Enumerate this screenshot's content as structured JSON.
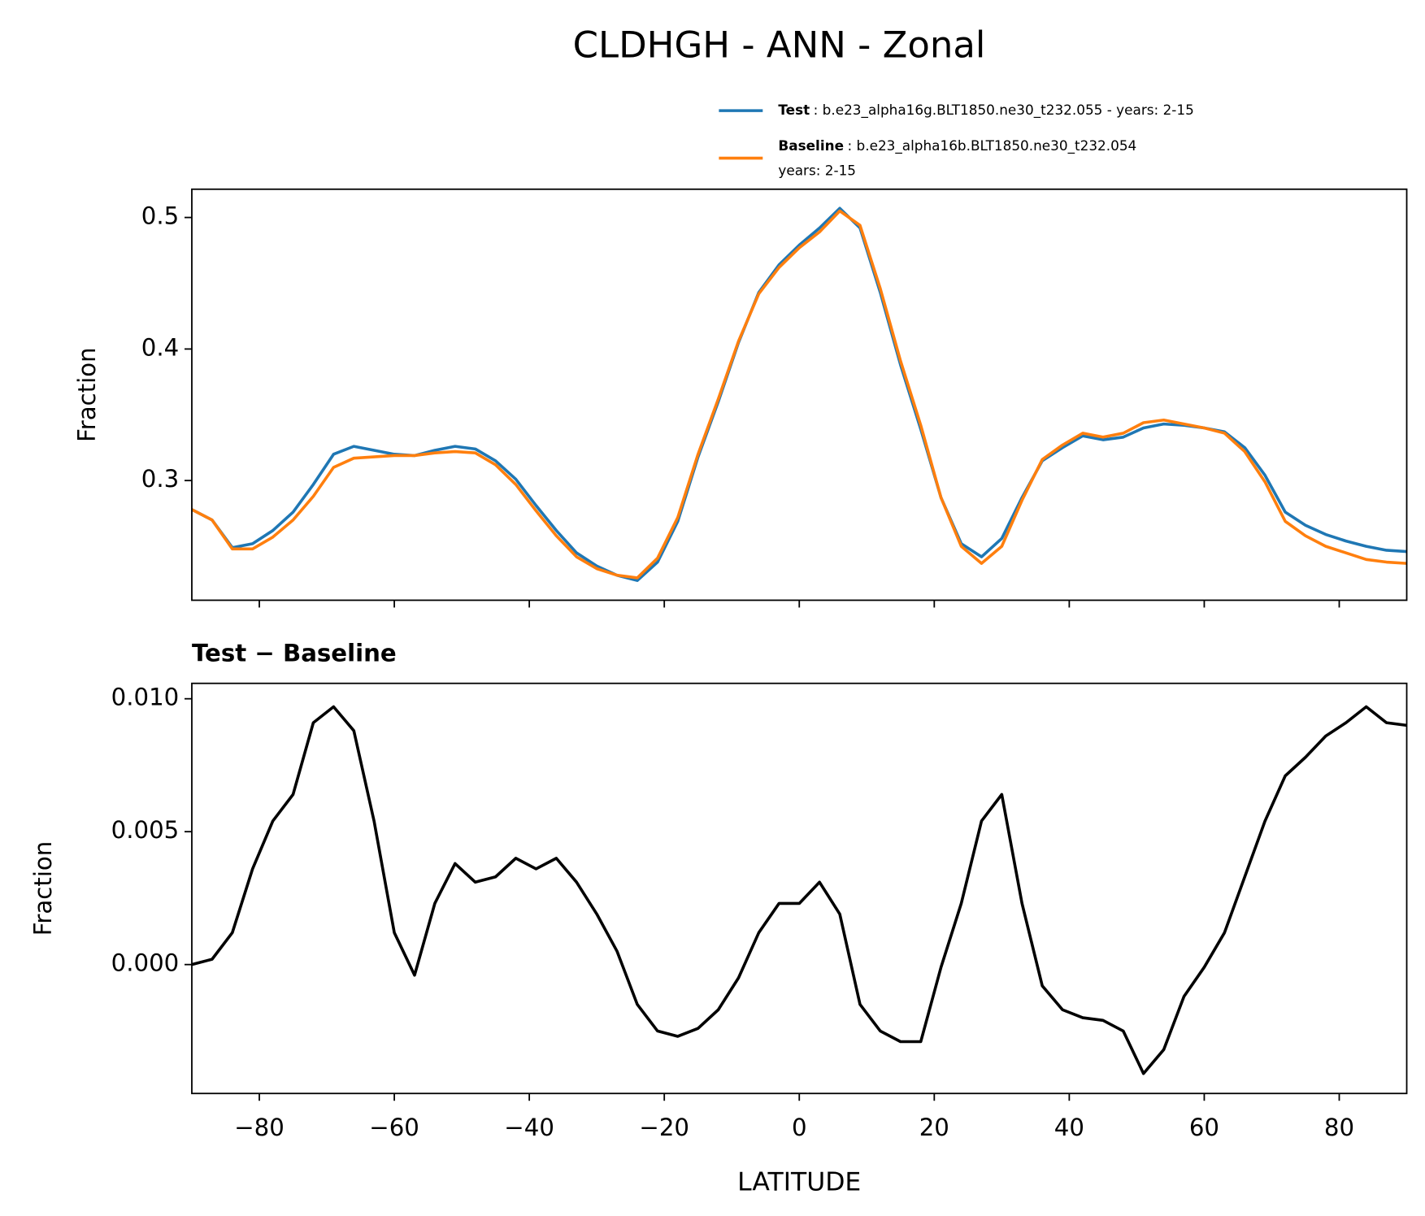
{
  "title": "CLDHGH - ANN - Zonal",
  "chart_data": [
    {
      "type": "line",
      "sharex": true,
      "ylabel": "Fraction",
      "xlim": [
        -90,
        90
      ],
      "xticks": [
        -80,
        -60,
        -40,
        -20,
        0,
        20,
        40,
        60,
        80
      ],
      "ylim": [
        0.209,
        0.5215
      ],
      "yticks": [
        0.3,
        0.4,
        0.5
      ],
      "x": [
        -90,
        -87,
        -84,
        -81,
        -78,
        -75,
        -72,
        -69,
        -66,
        -63,
        -60,
        -57,
        -54,
        -51,
        -48,
        -45,
        -42,
        -39,
        -36,
        -33,
        -30,
        -27,
        -24,
        -21,
        -18,
        -15,
        -12,
        -9,
        -6,
        -3,
        0,
        3,
        6,
        9,
        12,
        15,
        18,
        21,
        24,
        27,
        30,
        33,
        36,
        39,
        42,
        45,
        48,
        51,
        54,
        57,
        60,
        63,
        66,
        69,
        72,
        75,
        78,
        81,
        84,
        87,
        90
      ],
      "series": [
        {
          "name": "Test",
          "description": [
            ": b.e23_alpha16g.BLT1850.ne30_t232.055 - years: 2-15"
          ],
          "color": "#1f77b4",
          "values": [
            0.278,
            0.27,
            0.249,
            0.252,
            0.262,
            0.276,
            0.297,
            0.32,
            0.326,
            0.323,
            0.32,
            0.319,
            0.323,
            0.326,
            0.324,
            0.315,
            0.301,
            0.281,
            0.262,
            0.245,
            0.235,
            0.228,
            0.224,
            0.238,
            0.269,
            0.318,
            0.36,
            0.405,
            0.443,
            0.464,
            0.479,
            0.492,
            0.507,
            0.492,
            0.443,
            0.388,
            0.339,
            0.287,
            0.252,
            0.242,
            0.256,
            0.287,
            0.315,
            0.325,
            0.334,
            0.331,
            0.333,
            0.34,
            0.343,
            0.342,
            0.34,
            0.337,
            0.325,
            0.304,
            0.276,
            0.266,
            0.259,
            0.254,
            0.25,
            0.247,
            0.246
          ]
        },
        {
          "name": "Baseline",
          "description": [
            ": b.e23_alpha16b.BLT1850.ne30_t232.054",
            "years: 2-15"
          ],
          "color": "#ff7f0e",
          "values": [
            0.278,
            0.27,
            0.248,
            0.248,
            0.257,
            0.27,
            0.288,
            0.31,
            0.317,
            0.318,
            0.319,
            0.319,
            0.321,
            0.322,
            0.321,
            0.312,
            0.297,
            0.277,
            0.258,
            0.242,
            0.233,
            0.228,
            0.226,
            0.241,
            0.272,
            0.32,
            0.362,
            0.406,
            0.442,
            0.462,
            0.477,
            0.489,
            0.505,
            0.494,
            0.446,
            0.391,
            0.342,
            0.287,
            0.25,
            0.237,
            0.25,
            0.285,
            0.316,
            0.327,
            0.336,
            0.333,
            0.336,
            0.344,
            0.346,
            0.343,
            0.34,
            0.336,
            0.322,
            0.299,
            0.269,
            0.258,
            0.25,
            0.245,
            0.24,
            0.238,
            0.237
          ]
        }
      ]
    },
    {
      "type": "line",
      "title": "Test − Baseline",
      "ylabel": "Fraction",
      "xlabel": "LATITUDE",
      "xlim": [
        -90,
        90
      ],
      "xticks": [
        {
          "value": -80,
          "label": "−80"
        },
        {
          "value": -60,
          "label": "−60"
        },
        {
          "value": -40,
          "label": "−40"
        },
        {
          "value": -20,
          "label": "−20"
        },
        0,
        20,
        40,
        60,
        80
      ],
      "ylim": [
        -0.00485,
        0.01058
      ],
      "yticks": [
        {
          "value": 0,
          "label": "0.000"
        },
        0.005,
        {
          "value": 0.01,
          "label": "0.010"
        }
      ],
      "x": [
        -90,
        -87,
        -84,
        -81,
        -78,
        -75,
        -72,
        -69,
        -66,
        -63,
        -60,
        -57,
        -54,
        -51,
        -48,
        -45,
        -42,
        -39,
        -36,
        -33,
        -30,
        -27,
        -24,
        -21,
        -18,
        -15,
        -12,
        -9,
        -6,
        -3,
        0,
        3,
        6,
        9,
        12,
        15,
        18,
        21,
        24,
        27,
        30,
        33,
        36,
        39,
        42,
        45,
        48,
        51,
        54,
        57,
        60,
        63,
        66,
        69,
        72,
        75,
        78,
        81,
        84,
        87,
        90
      ],
      "series": [
        {
          "color": "#000000",
          "values": [
            0.0,
            0.0002,
            0.0012,
            0.0036,
            0.0054,
            0.0064,
            0.0091,
            0.0097,
            0.0088,
            0.0054,
            0.0012,
            -0.0004,
            0.0023,
            0.0038,
            0.0031,
            0.0033,
            0.004,
            0.0036,
            0.004,
            0.0031,
            0.0019,
            0.0005,
            -0.0015,
            -0.0025,
            -0.0027,
            -0.0024,
            -0.0017,
            -0.0005,
            0.0012,
            0.0023,
            0.0023,
            0.0031,
            0.0019,
            -0.0015,
            -0.0025,
            -0.0029,
            -0.0029,
            -0.0001,
            0.0023,
            0.0054,
            0.0064,
            0.0023,
            -0.0008,
            -0.0017,
            -0.002,
            -0.0021,
            -0.0025,
            -0.0041,
            -0.0032,
            -0.0012,
            -0.0001,
            0.0012,
            0.0033,
            0.0054,
            0.0071,
            0.0078,
            0.0086,
            0.0091,
            0.0097,
            0.0091,
            0.009
          ]
        }
      ]
    }
  ]
}
